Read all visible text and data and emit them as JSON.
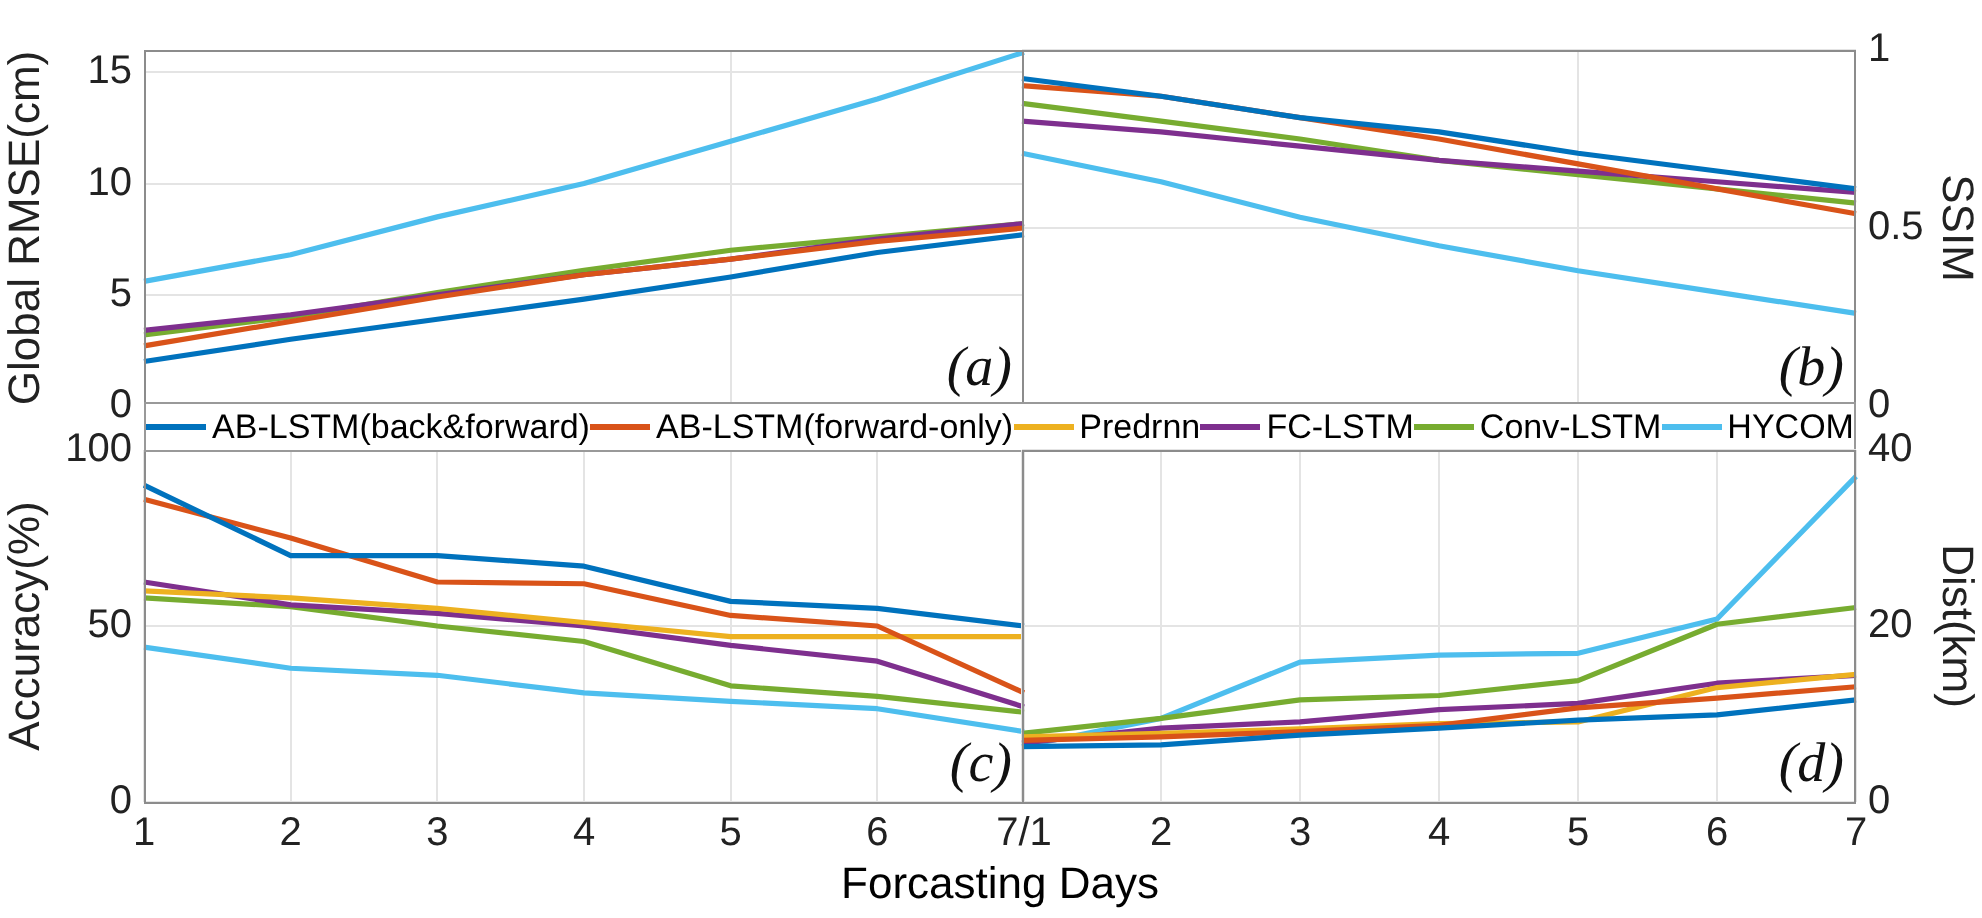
{
  "chart_data": [
    {
      "type": "line",
      "ylabel": "Global RMSE(cm)",
      "x": [
        1,
        2,
        3,
        4,
        5,
        6,
        7
      ],
      "xlim": [
        1,
        7
      ],
      "xticks": [
        {
          "value": 5,
          "label": null
        }
      ],
      "ylim": [
        0,
        16
      ],
      "yticks": [
        0,
        5,
        10,
        15
      ],
      "tick_labels": "y",
      "grid": true,
      "annotations": [
        "(a)"
      ],
      "series": [
        {
          "color": "#0072bd",
          "values": [
            2.0,
            3.0,
            3.9,
            4.8,
            5.8,
            6.9,
            7.7
          ]
        },
        {
          "color": "#d95319",
          "values": [
            2.7,
            3.8,
            4.9,
            5.9,
            6.6,
            7.4,
            8.0
          ]
        },
        {
          "color": "#7e2f8e",
          "values": [
            3.4,
            4.1,
            5.0,
            5.9,
            6.6,
            7.5,
            8.2
          ]
        },
        {
          "color": "#77ac30",
          "values": [
            3.2,
            4.0,
            5.1,
            6.1,
            7.0,
            7.6,
            8.2
          ]
        },
        {
          "color": "#4dbeee",
          "values": [
            5.6,
            6.8,
            8.5,
            10.0,
            11.9,
            13.8,
            15.9
          ]
        }
      ]
    },
    {
      "type": "line",
      "y2label": "SSIM",
      "x": [
        1,
        2,
        3,
        4,
        5,
        6,
        7
      ],
      "xlim": [
        1,
        7
      ],
      "xticks": [
        {
          "value": 5,
          "label": null
        }
      ],
      "y2lim": [
        0,
        1
      ],
      "y2ticks": [
        0,
        0.5,
        1
      ],
      "tick_labels": "y",
      "grid": true,
      "annotations": [
        "(b)"
      ],
      "series": [
        {
          "color": "#0072bd",
          "axis": "y2",
          "values": [
            0.92,
            0.87,
            0.81,
            0.77,
            0.71,
            0.66,
            0.61
          ]
        },
        {
          "color": "#d95319",
          "axis": "y2",
          "values": [
            0.9,
            0.87,
            0.81,
            0.75,
            0.68,
            0.61,
            0.54
          ]
        },
        {
          "color": "#7e2f8e",
          "axis": "y2",
          "values": [
            0.8,
            0.77,
            0.73,
            0.69,
            0.66,
            0.63,
            0.6
          ]
        },
        {
          "color": "#77ac30",
          "axis": "y2",
          "values": [
            0.85,
            0.8,
            0.75,
            0.69,
            0.65,
            0.61,
            0.57
          ]
        },
        {
          "color": "#4dbeee",
          "axis": "y2",
          "values": [
            0.71,
            0.63,
            0.53,
            0.45,
            0.38,
            0.32,
            0.26
          ]
        }
      ]
    },
    {
      "type": "line",
      "xlabel": "Forcasting Days",
      "ylabel": "Accuracy(%)",
      "x": [
        1,
        2,
        3,
        4,
        5,
        6,
        7
      ],
      "xlim": [
        1,
        7
      ],
      "xticks": [
        1,
        2,
        3,
        4,
        5,
        6,
        {
          "value": 7,
          "label": "7/1"
        }
      ],
      "ylim": [
        0,
        100
      ],
      "yticks": [
        0,
        50,
        100
      ],
      "grid": true,
      "legend": "top",
      "annotations": [
        "(c)"
      ],
      "series": [
        {
          "name": "AB-LSTM(back&forward)",
          "color": "#0072bd",
          "values": [
            90,
            70,
            70,
            67,
            57,
            55,
            50
          ]
        },
        {
          "name": "AB-LSTM(forward-only)",
          "color": "#d95319",
          "values": [
            86,
            75,
            62.5,
            62,
            53,
            50,
            31
          ]
        },
        {
          "name": "Predrnn",
          "color": "#edb120",
          "values": [
            60,
            58,
            55,
            51,
            47,
            47,
            47
          ]
        },
        {
          "name": "FC-LSTM",
          "color": "#7e2f8e",
          "values": [
            62.5,
            56,
            53.6,
            50,
            44.5,
            40,
            27
          ]
        },
        {
          "name": "Conv-LSTM",
          "color": "#77ac30",
          "values": [
            58,
            55.5,
            50,
            45.6,
            33,
            30,
            25.5
          ]
        },
        {
          "name": "HYCOM",
          "color": "#4dbeee",
          "values": [
            44,
            38,
            36,
            31,
            28.6,
            26.5,
            20
          ]
        }
      ]
    },
    {
      "type": "line",
      "y2label": "Dist(km)",
      "x": [
        1,
        2,
        3,
        4,
        5,
        6,
        7
      ],
      "xlim": [
        1,
        7
      ],
      "xticks": [
        {
          "value": 1,
          "label": null
        },
        2,
        3,
        4,
        5,
        6,
        7
      ],
      "y2lim": [
        0,
        40
      ],
      "y2ticks": [
        0,
        20,
        40
      ],
      "grid": true,
      "annotations": [
        "(d)"
      ],
      "series": [
        {
          "color": "#0072bd",
          "axis": "y2",
          "values": [
            6.3,
            6.5,
            7.6,
            8.4,
            9.3,
            9.9,
            11.6
          ]
        },
        {
          "color": "#d95319",
          "axis": "y2",
          "values": [
            7.0,
            7.4,
            8.0,
            8.7,
            10.7,
            11.8,
            13.1
          ]
        },
        {
          "color": "#edb120",
          "axis": "y2",
          "values": [
            7.4,
            7.8,
            8.3,
            8.9,
            9.1,
            13.0,
            14.5
          ]
        },
        {
          "color": "#7e2f8e",
          "axis": "y2",
          "values": [
            6.7,
            8.4,
            9.1,
            10.5,
            11.2,
            13.5,
            14.4
          ]
        },
        {
          "color": "#77ac30",
          "axis": "y2",
          "values": [
            7.8,
            9.5,
            11.6,
            12.1,
            13.8,
            20.2,
            22.1
          ]
        },
        {
          "color": "#4dbeee",
          "axis": "y2",
          "values": [
            6.3,
            9.5,
            15.9,
            16.7,
            16.9,
            20.8,
            37
          ]
        }
      ]
    }
  ]
}
